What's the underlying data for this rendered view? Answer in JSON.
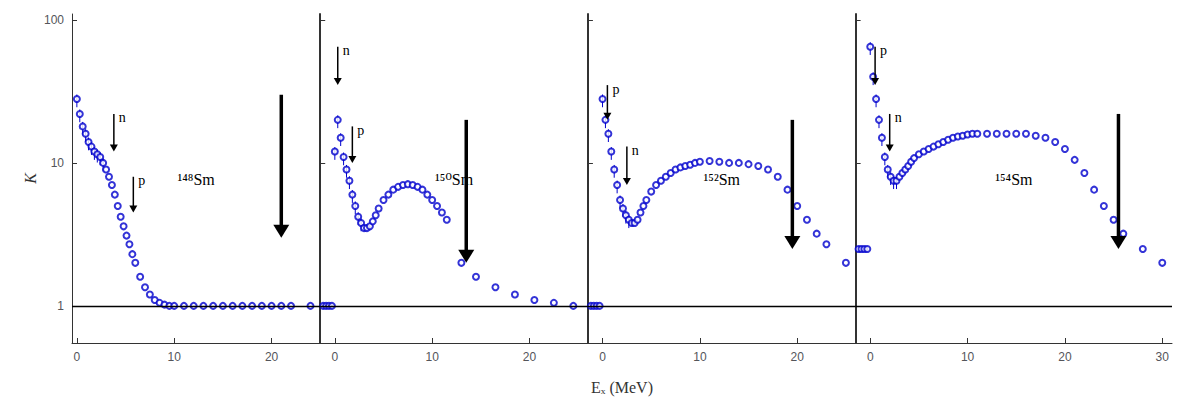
{
  "chart_data": [
    {
      "type": "scatter",
      "title": "¹⁴⁸Sm",
      "ylabel": "K",
      "x": [
        0.0,
        0.3,
        0.6,
        0.9,
        1.2,
        1.5,
        1.8,
        2.1,
        2.4,
        2.7,
        3.0,
        3.3,
        3.6,
        3.9,
        4.2,
        4.5,
        4.8,
        5.1,
        5.4,
        5.7,
        6.0,
        6.5,
        7.0,
        7.5,
        8.0,
        8.5,
        9.0,
        9.5,
        10.0,
        11.0,
        12.0,
        13.0,
        14.0,
        15.0,
        16.0,
        17.0,
        18.0,
        19.0,
        20.0,
        21.0,
        22.0,
        24.0
      ],
      "values": [
        28,
        22,
        18,
        16,
        14,
        13,
        12,
        11.5,
        11,
        10,
        9,
        8,
        7,
        6,
        5,
        4.2,
        3.6,
        3.1,
        2.7,
        2.3,
        2.0,
        1.6,
        1.35,
        1.2,
        1.1,
        1.05,
        1.02,
        1.0,
        1.0,
        1.0,
        1.0,
        1.0,
        1.0,
        1.0,
        1.0,
        1.0,
        1.0,
        1.0,
        1.0,
        1.0,
        1.0,
        1.0
      ],
      "error_minus": [
        3.5,
        2.75,
        2.25,
        2,
        1.75,
        1.625,
        1.5,
        1.4375,
        1.375,
        1.25,
        null,
        null,
        null,
        null,
        null,
        null,
        null,
        null,
        null,
        null,
        null,
        null,
        null,
        null,
        null,
        null,
        null,
        null,
        null,
        null,
        null,
        null,
        null,
        null,
        null,
        null,
        null,
        null,
        null,
        null,
        null,
        null
      ],
      "error_plus": [
        2.1,
        1.65,
        1.35,
        1.2,
        1.05,
        0.975,
        0.9,
        0.8625,
        0.825,
        0.75,
        null,
        null,
        null,
        null,
        null,
        null,
        null,
        null,
        null,
        null,
        null,
        null,
        null,
        null,
        null,
        null,
        null,
        null,
        null,
        null,
        null,
        null,
        null,
        null,
        null,
        null,
        null,
        null,
        null,
        null,
        null,
        null
      ],
      "xlim": [
        -0.5,
        25
      ],
      "xticks": [
        0,
        10,
        20
      ],
      "ylim": [
        0.55,
        110
      ],
      "yticks": [
        1,
        10,
        100
      ],
      "log": "y",
      "grid": false,
      "color": "#0000CD",
      "marker": "open_circle",
      "hline": {
        "y": 1.0,
        "color": "black"
      },
      "annotations": [
        {
          "text": "n",
          "x": 3.8,
          "y_top": 22,
          "y_bottom": 12,
          "color": "black"
        },
        {
          "text": "p",
          "x": 5.8,
          "y_top": 8,
          "y_bottom": 4.5,
          "color": "black"
        },
        {
          "x": 21,
          "y_top": 30,
          "y_bottom": 3,
          "color": "black"
        }
      ]
    },
    {
      "type": "scatter",
      "title": "¹⁵⁰Sm",
      "tick_labels": "x",
      "x": [
        -1.2,
        -0.9,
        -0.6,
        -0.3,
        0.0,
        0.3,
        0.6,
        0.9,
        1.2,
        1.5,
        1.8,
        2.1,
        2.4,
        2.7,
        3.0,
        3.3,
        3.6,
        3.9,
        4.2,
        4.5,
        5.0,
        5.5,
        6.0,
        6.5,
        7.0,
        7.5,
        8.0,
        8.5,
        9.0,
        9.5,
        10.0,
        10.5,
        11.0,
        11.5,
        13.0,
        14.5,
        16.5,
        18.5,
        20.5,
        22.5,
        24.5
      ],
      "values": [
        1.0,
        1.0,
        1.0,
        1.0,
        12,
        20,
        15,
        11,
        9,
        7.5,
        6,
        5,
        4.2,
        3.8,
        3.5,
        3.5,
        3.6,
        3.9,
        4.3,
        4.8,
        5.5,
        6.0,
        6.5,
        6.8,
        7.0,
        7.1,
        7.0,
        6.8,
        6.5,
        6.0,
        5.5,
        5.0,
        4.5,
        4.0,
        2.0,
        1.6,
        1.35,
        1.2,
        1.1,
        1.05,
        1.0
      ],
      "error_minus": [
        null,
        null,
        null,
        null,
        1.5,
        2.5,
        1.875,
        1.375,
        1.125,
        0.9375,
        0.75,
        0.625,
        0.525,
        0.475,
        null,
        null,
        null,
        null,
        null,
        null,
        null,
        null,
        null,
        null,
        null,
        null,
        null,
        null,
        null,
        null,
        null,
        null,
        null,
        null,
        null,
        null,
        null,
        null,
        null,
        null,
        null
      ],
      "error_plus": [
        null,
        null,
        null,
        null,
        0.9,
        1.5,
        1.125,
        0.825,
        0.675,
        0.5625,
        0.45,
        0.375,
        0.315,
        0.285,
        null,
        null,
        null,
        null,
        null,
        null,
        null,
        null,
        null,
        null,
        null,
        null,
        null,
        null,
        null,
        null,
        null,
        null,
        null,
        null,
        null,
        null,
        null,
        null,
        null,
        null,
        null
      ],
      "xlim": [
        -1.5,
        26
      ],
      "xticks": [
        0,
        10,
        20
      ],
      "ylim": [
        0.55,
        110
      ],
      "yticks": [
        1,
        10,
        100
      ],
      "log": "y",
      "grid": false,
      "color": "#0000CD",
      "marker": "open_circle",
      "hline": {
        "y": 1.0,
        "color": "black"
      },
      "annotations": [
        {
          "text": "n",
          "x": 0.3,
          "y_top": 65,
          "y_bottom": 35,
          "color": "black"
        },
        {
          "text": "p",
          "x": 1.8,
          "y_top": 18,
          "y_bottom": 10,
          "color": "black"
        },
        {
          "x": 13.5,
          "y_top": 20,
          "y_bottom": 2,
          "color": "black"
        }
      ]
    },
    {
      "type": "scatter",
      "title": "¹⁵²Sm",
      "tick_labels": "x",
      "xlabel": "Eₓ (MeV)",
      "x": [
        -1.2,
        -0.9,
        -0.6,
        -0.3,
        0.0,
        0.3,
        0.6,
        0.9,
        1.2,
        1.5,
        1.8,
        2.1,
        2.4,
        2.7,
        3.0,
        3.3,
        3.6,
        3.9,
        4.2,
        4.5,
        5.0,
        5.5,
        6.0,
        6.5,
        7.0,
        7.5,
        8.0,
        8.5,
        9.0,
        9.5,
        10.0,
        11.0,
        12.0,
        13.0,
        14.0,
        15.0,
        16.0,
        17.0,
        18.0,
        19.0,
        20.0,
        21.0,
        22.0,
        23.0,
        25.0
      ],
      "values": [
        1.0,
        1.0,
        1.0,
        1.0,
        28,
        20,
        16,
        12,
        9,
        7,
        5.5,
        4.8,
        4.3,
        4.0,
        3.8,
        3.8,
        4.0,
        4.5,
        5.0,
        5.5,
        6.3,
        7.0,
        7.5,
        8.0,
        8.5,
        9.0,
        9.3,
        9.5,
        9.7,
        10.0,
        10.2,
        10.3,
        10.2,
        10.0,
        10.0,
        9.8,
        9.5,
        9.0,
        8.0,
        6.5,
        5.0,
        4.0,
        3.2,
        2.7,
        2.0
      ],
      "error_minus": [
        null,
        null,
        null,
        null,
        3.5,
        2.5,
        2,
        1.5,
        1.125,
        0.875,
        0.6875,
        0.6,
        0.5375,
        0.5,
        null,
        null,
        null,
        null,
        null,
        null,
        null,
        null,
        null,
        null,
        null,
        null,
        null,
        null,
        null,
        null,
        null,
        null,
        null,
        null,
        null,
        null,
        null,
        null,
        null,
        null,
        null,
        null,
        null,
        null,
        null
      ],
      "error_plus": [
        null,
        null,
        null,
        null,
        2.1,
        1.5,
        1.2,
        0.9,
        0.675,
        0.525,
        0.4125,
        0.36,
        0.3225,
        0.3,
        null,
        null,
        null,
        null,
        null,
        null,
        null,
        null,
        null,
        null,
        null,
        null,
        null,
        null,
        null,
        null,
        null,
        null,
        null,
        null,
        null,
        null,
        null,
        null,
        null,
        null,
        null,
        null,
        null,
        null,
        null
      ],
      "xlim": [
        -1.5,
        26
      ],
      "xticks": [
        0,
        10,
        20
      ],
      "ylim": [
        0.55,
        110
      ],
      "yticks": [
        1,
        10,
        100
      ],
      "log": "y",
      "grid": false,
      "color": "#0000CD",
      "marker": "open_circle",
      "hline": {
        "y": 1.0,
        "color": "black"
      },
      "annotations": [
        {
          "text": "n",
          "x": 2.5,
          "y_top": 13,
          "y_bottom": 7,
          "color": "black"
        },
        {
          "text": "p",
          "x": 0.5,
          "y_top": 35,
          "y_bottom": 20,
          "color": "black"
        },
        {
          "x": 19.5,
          "y_top": 20,
          "y_bottom": 2.5,
          "color": "black"
        }
      ]
    },
    {
      "type": "scatter",
      "title": "¹⁵⁴Sm",
      "tick_labels": "x",
      "x": [
        -1.2,
        -0.9,
        -0.6,
        -0.3,
        0.0,
        0.3,
        0.6,
        0.9,
        1.2,
        1.5,
        1.8,
        2.1,
        2.4,
        2.7,
        3.0,
        3.3,
        3.6,
        3.9,
        4.2,
        4.5,
        5.0,
        5.5,
        6.0,
        6.5,
        7.0,
        7.5,
        8.0,
        8.5,
        9.0,
        9.5,
        10.0,
        10.5,
        11.0,
        12.0,
        13.0,
        14.0,
        15.0,
        16.0,
        17.0,
        18.0,
        19.0,
        20.0,
        21.0,
        22.0,
        23.0,
        24.0,
        25.0,
        26.0,
        28.0,
        30.0
      ],
      "values": [
        2.5,
        2.5,
        2.5,
        2.5,
        65,
        40,
        28,
        20,
        15,
        11,
        9,
        8,
        7.5,
        7.5,
        8.0,
        8.5,
        9.0,
        9.5,
        10.2,
        10.8,
        11.5,
        12.0,
        12.5,
        13.0,
        13.5,
        14.0,
        14.5,
        15.0,
        15.3,
        15.5,
        15.8,
        16.0,
        16.0,
        16.0,
        16.0,
        16.0,
        16.0,
        16.0,
        15.5,
        15.0,
        14.0,
        12.5,
        10.5,
        8.5,
        6.5,
        5.0,
        4.0,
        3.2,
        2.5,
        2.0
      ],
      "error_minus": [
        null,
        null,
        null,
        null,
        8.125,
        5,
        3.5,
        2.5,
        1.875,
        1.375,
        1.125,
        1,
        0.9375,
        0.9375,
        null,
        null,
        null,
        null,
        null,
        null,
        null,
        null,
        null,
        null,
        null,
        null,
        null,
        null,
        null,
        null,
        null,
        null,
        null,
        null,
        null,
        null,
        null,
        null,
        null,
        null,
        null,
        null,
        null,
        null,
        null,
        null,
        null,
        null,
        null,
        null
      ],
      "error_plus": [
        null,
        null,
        null,
        null,
        4.875,
        3,
        2.1,
        1.5,
        1.125,
        0.825,
        0.675,
        0.6,
        0.5625,
        0.5625,
        null,
        null,
        null,
        null,
        null,
        null,
        null,
        null,
        null,
        null,
        null,
        null,
        null,
        null,
        null,
        null,
        null,
        null,
        null,
        null,
        null,
        null,
        null,
        null,
        null,
        null,
        null,
        null,
        null,
        null,
        null,
        null,
        null,
        null,
        null,
        null
      ],
      "xlim": [
        -1.5,
        31
      ],
      "xticks": [
        0,
        10,
        20,
        30
      ],
      "ylim": [
        0.55,
        110
      ],
      "yticks": [
        1,
        10,
        100
      ],
      "log": "y",
      "grid": false,
      "color": "#0000CD",
      "marker": "open_circle",
      "hline": {
        "y": 1.0,
        "color": "black"
      },
      "annotations": [
        {
          "text": "n",
          "x": 2.0,
          "y_top": 22,
          "y_bottom": 12,
          "color": "black"
        },
        {
          "text": "p",
          "x": 0.5,
          "y_top": 65,
          "y_bottom": 35,
          "color": "black"
        },
        {
          "x": 25.5,
          "y_top": 22,
          "y_bottom": 2.5,
          "color": "black"
        }
      ]
    }
  ]
}
